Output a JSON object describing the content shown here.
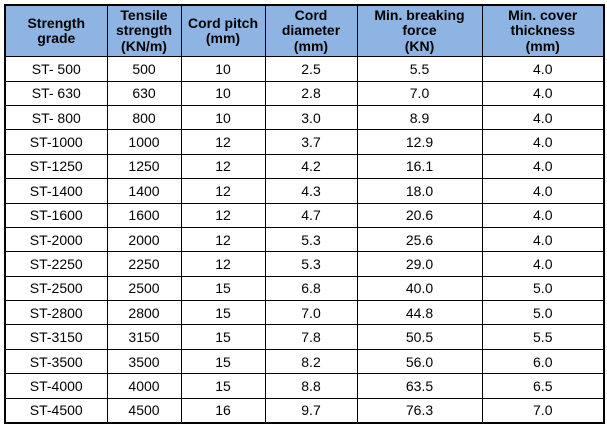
{
  "table": {
    "name": "steel-cord-belt-strength-grade-table",
    "headers": [
      "Strength\ngrade",
      "Tensile\nstrength\n(KN/m)",
      "Cord pitch\n(mm)",
      "Cord\ndiameter\n(mm)",
      "Min. breaking\nforce\n(KN)",
      "Min. cover\nthickness\n(mm)"
    ],
    "rows": [
      [
        "ST- 500",
        "500",
        "10",
        "2.5",
        "5.5",
        "4.0"
      ],
      [
        "ST- 630",
        "630",
        "10",
        "2.8",
        "7.0",
        "4.0"
      ],
      [
        "ST- 800",
        "800",
        "10",
        "3.0",
        "8.9",
        "4.0"
      ],
      [
        "ST-1000",
        "1000",
        "12",
        "3.7",
        "12.9",
        "4.0"
      ],
      [
        "ST-1250",
        "1250",
        "12",
        "4.2",
        "16.1",
        "4.0"
      ],
      [
        "ST-1400",
        "1400",
        "12",
        "4.3",
        "18.0",
        "4.0"
      ],
      [
        "ST-1600",
        "1600",
        "12",
        "4.7",
        "20.6",
        "4.0"
      ],
      [
        "ST-2000",
        "2000",
        "12",
        "5.3",
        "25.6",
        "4.0"
      ],
      [
        "ST-2250",
        "2250",
        "12",
        "5.3",
        "29.0",
        "4.0"
      ],
      [
        "ST-2500",
        "2500",
        "15",
        "6.8",
        "40.0",
        "5.0"
      ],
      [
        "ST-2800",
        "2800",
        "15",
        "7.0",
        "44.8",
        "5.0"
      ],
      [
        "ST-3150",
        "3150",
        "15",
        "7.8",
        "50.5",
        "5.5"
      ],
      [
        "ST-3500",
        "3500",
        "15",
        "8.2",
        "56.0",
        "6.0"
      ],
      [
        "ST-4000",
        "4000",
        "15",
        "8.8",
        "63.5",
        "6.5"
      ],
      [
        "ST-4500",
        "4500",
        "16",
        "9.7",
        "76.3",
        "7.0"
      ]
    ]
  },
  "colors": {
    "header_background": "#8DB4E2",
    "border": "#000000",
    "text": "#000000",
    "page_background": "#FFFFFF"
  }
}
